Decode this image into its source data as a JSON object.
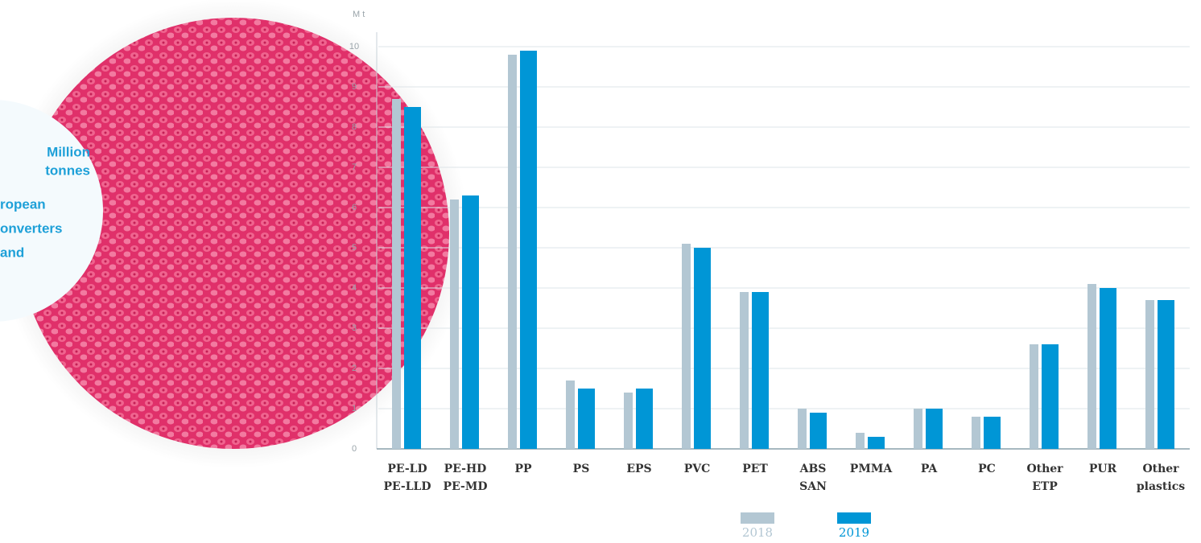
{
  "chart_data": {
    "type": "bar",
    "ylabel": "M t",
    "categories": [
      [
        "PE-LD",
        "PE-LLD"
      ],
      [
        "PE-HD",
        "PE-MD"
      ],
      [
        "PP"
      ],
      [
        "PS"
      ],
      [
        "EPS"
      ],
      [
        "PVC"
      ],
      [
        "PET"
      ],
      [
        "ABS",
        "SAN"
      ],
      [
        "PMMA"
      ],
      [
        "PA"
      ],
      [
        "PC"
      ],
      [
        "Other",
        "ETP"
      ],
      [
        "PUR"
      ],
      [
        "Other",
        "plastics"
      ]
    ],
    "series": [
      {
        "name": "2018",
        "color": "#b3c7d3",
        "values": [
          8.7,
          6.2,
          9.8,
          1.7,
          1.4,
          5.1,
          3.9,
          1.0,
          0.4,
          1.0,
          0.8,
          2.6,
          4.1,
          3.7
        ]
      },
      {
        "name": "2019",
        "color": "#0096d6",
        "values": [
          8.5,
          6.3,
          9.9,
          1.5,
          1.5,
          5.0,
          3.9,
          0.9,
          0.3,
          1.0,
          0.8,
          2.6,
          4.0,
          3.7
        ]
      }
    ],
    "ylim": [
      0,
      10
    ],
    "yticks": [
      0,
      1,
      2,
      3,
      4,
      5,
      6,
      7,
      8,
      9,
      10
    ],
    "grid": true,
    "annotations": [
      "Million",
      "tonnes",
      "ropean",
      "onverters",
      "and"
    ]
  }
}
